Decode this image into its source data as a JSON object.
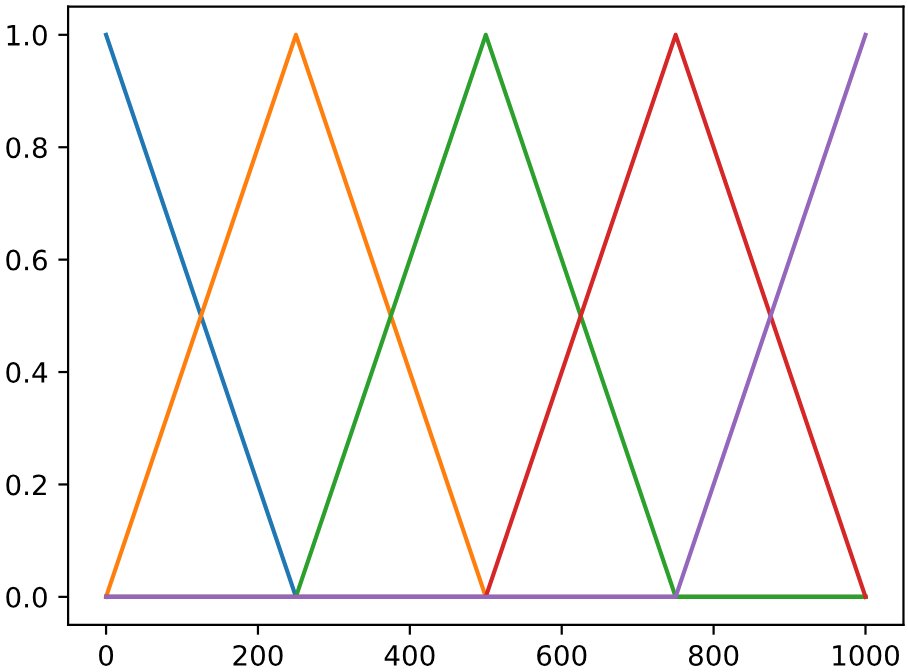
{
  "chart_data": {
    "type": "line",
    "xlim": [
      -50,
      1050
    ],
    "ylim": [
      -0.05,
      1.05
    ],
    "xticks": [
      0,
      200,
      400,
      600,
      800,
      1000
    ],
    "yticks": [
      {
        "value": 0,
        "label": "0.0"
      },
      {
        "value": 0.2,
        "label": "0.2"
      },
      {
        "value": 0.4,
        "label": "0.4"
      },
      {
        "value": 0.6,
        "label": "0.6"
      },
      {
        "value": 0.8,
        "label": "0.8"
      },
      {
        "value": 1,
        "label": "1.0"
      }
    ],
    "grid": false,
    "marker": "none",
    "line_style": "solid",
    "series": [
      {
        "color": "#1f77b4",
        "x": [
          0,
          250,
          1000
        ],
        "values": [
          1,
          0,
          0
        ]
      },
      {
        "color": "#ff7f0e",
        "x": [
          0,
          250,
          500,
          1000
        ],
        "values": [
          0,
          1,
          0,
          0
        ]
      },
      {
        "color": "#2ca02c",
        "x": [
          0,
          250,
          500,
          750,
          1000
        ],
        "values": [
          0,
          0,
          1,
          0,
          0
        ]
      },
      {
        "color": "#d62728",
        "x": [
          0,
          500,
          750,
          1000
        ],
        "values": [
          0,
          0,
          1,
          0
        ]
      },
      {
        "color": "#9467bd",
        "x": [
          0,
          750,
          1000
        ],
        "values": [
          0,
          0,
          1
        ]
      }
    ]
  }
}
